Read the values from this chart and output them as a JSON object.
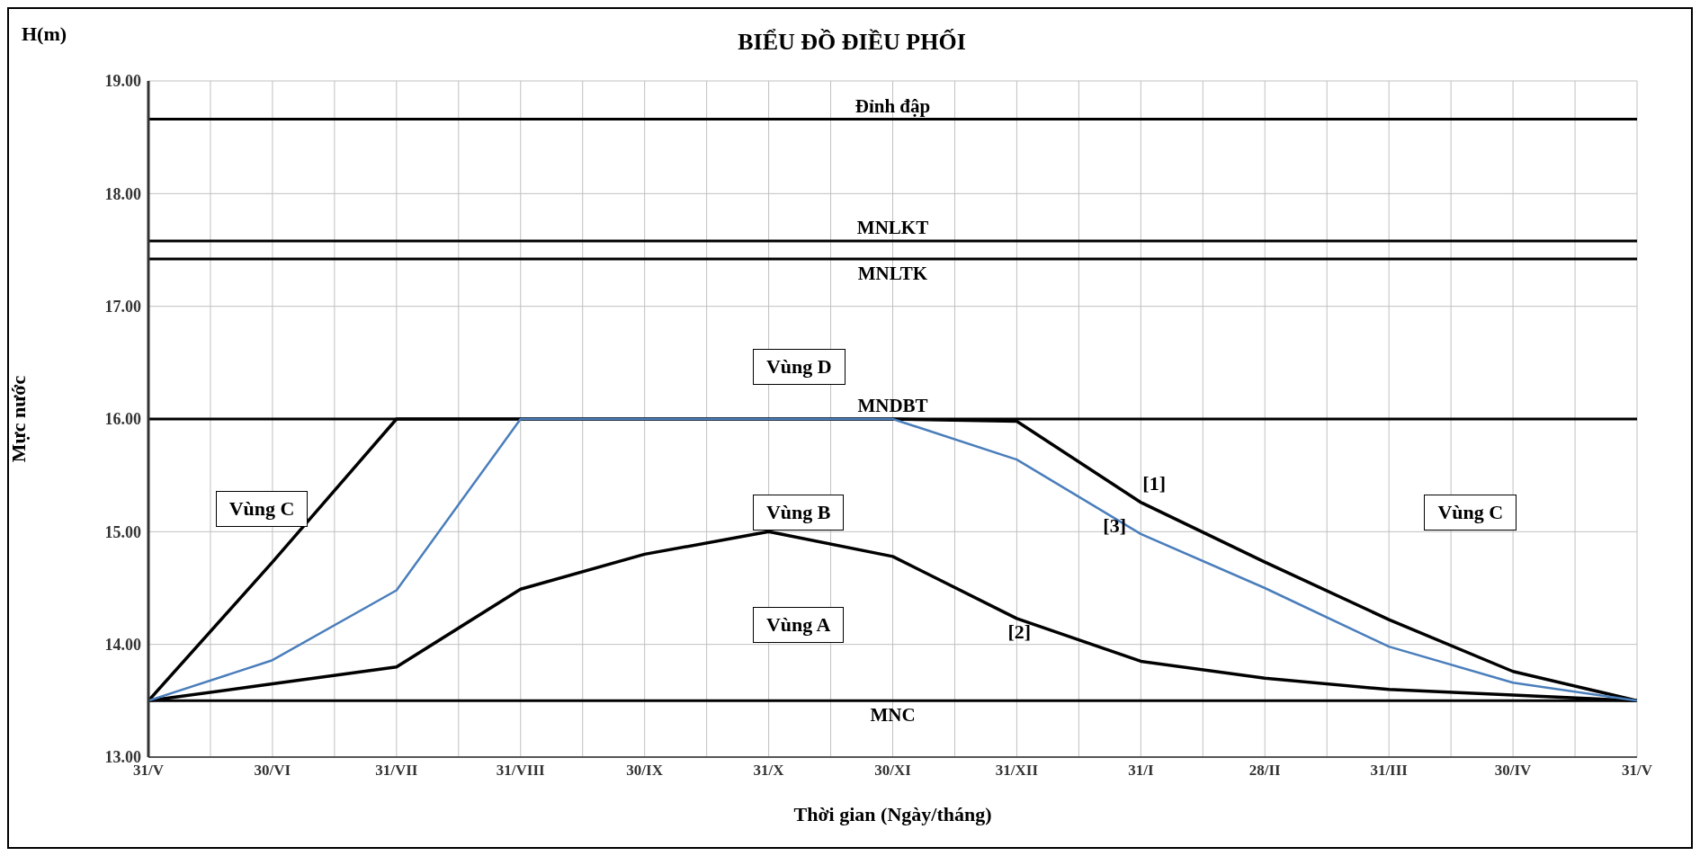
{
  "chart_data": {
    "type": "line",
    "title": "BIỂU ĐỒ ĐIỀU PHỐI",
    "xlabel": "Thời gian (Ngày/tháng)",
    "ylabel": "Mực nước",
    "categories": [
      "31/V",
      "30/VI",
      "31/VII",
      "31/VIII",
      "30/IX",
      "31/X",
      "30/XI",
      "31/XII",
      "31/I",
      "28/II",
      "31/III",
      "30/IV",
      "31/V"
    ],
    "series": [
      {
        "name": "[1]",
        "color": "#000000",
        "values": [
          13.5,
          14.73,
          16.0,
          16.0,
          16.0,
          16.0,
          16.0,
          15.98,
          15.26,
          14.73,
          14.22,
          13.76,
          13.5
        ]
      },
      {
        "name": "[2]",
        "color": "#000000",
        "values": [
          13.5,
          13.65,
          13.8,
          14.49,
          14.8,
          15.0,
          14.78,
          14.23,
          13.85,
          13.7,
          13.6,
          13.55,
          13.5
        ]
      },
      {
        "name": "[3]",
        "color": "#4a7ebb",
        "values": [
          13.5,
          13.86,
          14.48,
          16.0,
          16.0,
          16.0,
          16.0,
          15.64,
          14.98,
          14.5,
          13.98,
          13.66,
          13.5
        ]
      }
    ],
    "ylim": [
      13,
      19
    ],
    "yticks": [
      {
        "value": 13,
        "label": "13.00"
      },
      {
        "value": 14,
        "label": "14.00"
      },
      {
        "value": 15,
        "label": "15.00"
      },
      {
        "value": 16,
        "label": "16.00"
      },
      {
        "value": 17,
        "label": "17.00"
      },
      {
        "value": 18,
        "label": "18.00"
      },
      {
        "value": 19,
        "label": "19.00"
      }
    ],
    "ref_lines": [
      {
        "axis": "y",
        "value": 18.66,
        "label": "Đỉnh đập",
        "color": "#000000"
      },
      {
        "axis": "y",
        "value": 17.58,
        "label": "MNLKT",
        "color": "#000000"
      },
      {
        "axis": "y",
        "value": 17.42,
        "label": "MNLTK",
        "color": "#000000"
      },
      {
        "axis": "y",
        "value": 16.0,
        "label": "MNDBT",
        "color": "#000000"
      },
      {
        "axis": "y",
        "value": 13.5,
        "label": "MNC",
        "color": "#000000"
      }
    ],
    "annotations": [
      "H(m)",
      "Vùng D",
      "Vùng B",
      "Vùng A",
      "Vùng C",
      "Vùng C"
    ],
    "grid": true,
    "marker": "none",
    "line_style": "solid"
  }
}
